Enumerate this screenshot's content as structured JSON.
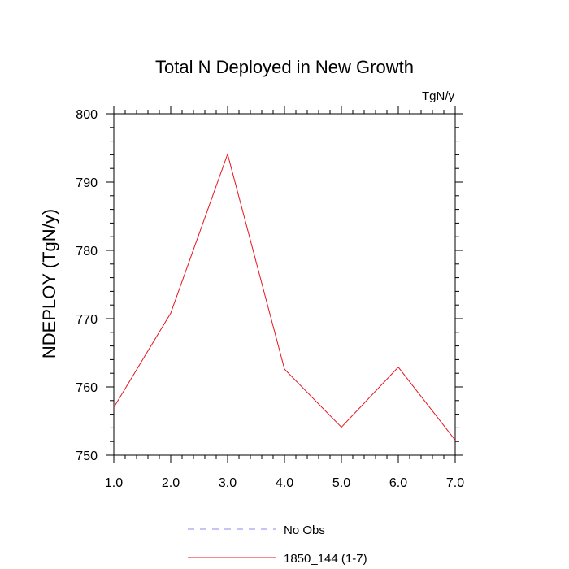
{
  "chart_data": {
    "type": "line",
    "title": "Total N Deployed in New Growth",
    "units_label": "TgN/y",
    "ylabel": "NDEPLOY  (TgN/y)",
    "xlabel": "",
    "xlim": [
      1,
      7
    ],
    "ylim": [
      750,
      800
    ],
    "x_ticks": [
      1,
      2,
      3,
      4,
      5,
      6,
      7
    ],
    "x_tick_labels": [
      "1.0",
      "2.0",
      "3.0",
      "4.0",
      "5.0",
      "6.0",
      "7.0"
    ],
    "y_ticks": [
      750,
      760,
      770,
      780,
      790,
      800
    ],
    "y_tick_labels": [
      "750",
      "760",
      "770",
      "780",
      "790",
      "800"
    ],
    "y_minor_step": 2,
    "x_minor_step": 0.2,
    "grid": false,
    "legend_position": "bottom-center",
    "series": [
      {
        "name": "1850_144 (1-7)",
        "color": "#e8141e",
        "style": "solid",
        "x": [
          1,
          2,
          3,
          4,
          5,
          6,
          7
        ],
        "values": [
          757.0,
          770.8,
          794.1,
          762.6,
          754.1,
          762.9,
          752.2
        ]
      }
    ],
    "legend": [
      {
        "label": "No Obs",
        "color": "#8888ee",
        "style": "dashed"
      },
      {
        "label": "1850_144 (1-7)",
        "color": "#e8141e",
        "style": "solid"
      }
    ]
  }
}
